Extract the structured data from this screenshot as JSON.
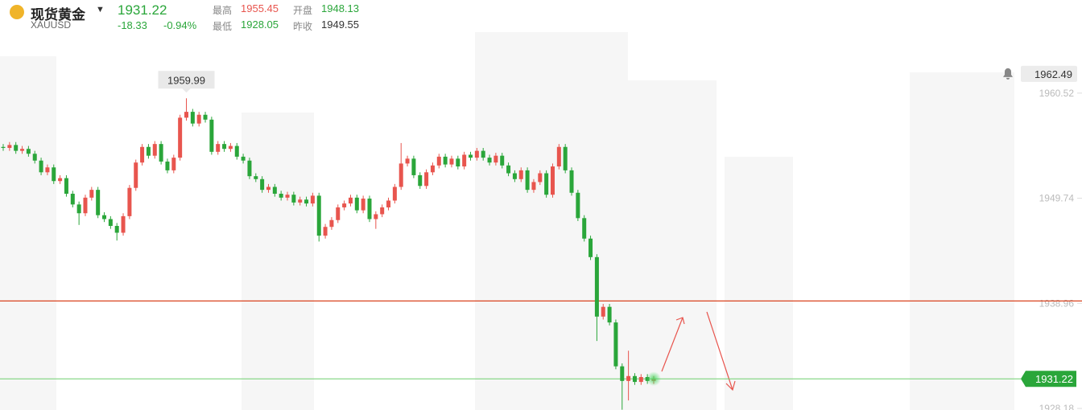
{
  "header": {
    "name": "现货黄金",
    "symbol": "XAUUSD",
    "price": "1931.22",
    "change": "-18.33",
    "change_pct": "-0.94%",
    "high_label": "最高",
    "high": "1955.45",
    "open_label": "开盘",
    "open": "1948.13",
    "low_label": "最低",
    "low": "1928.05",
    "prev_close_label": "昨收",
    "prev_close": "1949.55"
  },
  "chart_data": {
    "type": "candlestick",
    "up_color": "#e8554e",
    "down_color": "#2aa63a",
    "ylim": [
      1928.02,
      1970.07
    ],
    "yticks": [
      1960.52,
      1949.74,
      1938.96,
      1928.18
    ],
    "alert_price": 1962.49,
    "last_price": 1931.22,
    "hline": 1939.2,
    "hline_color": "#d9431f",
    "peak_label": 1959.99,
    "peak_index": 29,
    "open": [
      1955.0,
      1954.9,
      1955.2,
      1954.6,
      1954.8,
      1954.3,
      1953.6,
      1952.4,
      1952.9,
      1951.5,
      1951.8,
      1950.2,
      1949.1,
      1948.2,
      1949.8,
      1950.6,
      1948.0,
      1947.6,
      1946.9,
      1946.2,
      1947.9,
      1950.8,
      1953.4,
      1955.0,
      1954.1,
      1955.3,
      1953.5,
      1952.6,
      1953.9,
      1958.0,
      1958.6,
      1957.4,
      1958.3,
      1957.8,
      1954.5,
      1955.3,
      1954.8,
      1955.1,
      1954.0,
      1953.6,
      1952.0,
      1951.7,
      1950.6,
      1950.9,
      1950.2,
      1949.8,
      1950.1,
      1949.3,
      1949.6,
      1949.2,
      1950.0,
      1945.9,
      1946.8,
      1947.5,
      1948.8,
      1949.2,
      1949.8,
      1948.5,
      1949.7,
      1947.6,
      1948.1,
      1948.8,
      1949.5,
      1950.9,
      1953.3,
      1953.8,
      1952.1,
      1951.0,
      1952.4,
      1953.1,
      1954.0,
      1953.2,
      1953.8,
      1953.0,
      1954.2,
      1953.9,
      1954.6,
      1953.9,
      1953.4,
      1954.1,
      1953.1,
      1952.3,
      1951.7,
      1952.6,
      1950.6,
      1951.4,
      1952.3,
      1950.1,
      1953.0,
      1955.0,
      1952.6,
      1950.3,
      1947.7,
      1945.6,
      1943.7,
      1937.6,
      1938.6,
      1937.0,
      1932.5,
      1931.0,
      1931.5,
      1930.9,
      1931.4,
      1931.0
    ],
    "high": [
      1955.3,
      1955.5,
      1955.5,
      1955.1,
      1955.1,
      1954.6,
      1953.9,
      1953.2,
      1953.2,
      1952.1,
      1952.1,
      1950.5,
      1949.4,
      1950.1,
      1950.9,
      1950.9,
      1948.3,
      1947.9,
      1947.2,
      1948.2,
      1951.1,
      1953.7,
      1955.3,
      1955.3,
      1955.6,
      1955.6,
      1953.8,
      1954.2,
      1958.3,
      1959.99,
      1958.9,
      1958.6,
      1958.6,
      1958.1,
      1955.6,
      1955.6,
      1955.4,
      1955.4,
      1954.3,
      1953.9,
      1952.3,
      1952.0,
      1951.2,
      1951.2,
      1950.5,
      1950.4,
      1950.4,
      1949.9,
      1949.9,
      1950.3,
      1950.3,
      1947.1,
      1947.8,
      1949.1,
      1949.5,
      1950.1,
      1950.1,
      1950.0,
      1950.0,
      1948.4,
      1949.1,
      1949.8,
      1951.2,
      1955.4,
      1954.1,
      1954.1,
      1952.4,
      1952.7,
      1953.4,
      1954.3,
      1954.3,
      1954.1,
      1954.1,
      1954.5,
      1954.5,
      1954.9,
      1954.9,
      1954.2,
      1954.4,
      1954.4,
      1953.4,
      1952.6,
      1952.9,
      1952.9,
      1951.7,
      1952.6,
      1952.6,
      1953.3,
      1955.3,
      1955.3,
      1952.9,
      1950.6,
      1948.0,
      1945.9,
      1944.0,
      1938.9,
      1938.9,
      1937.3,
      1932.8,
      1934.1,
      1931.8,
      1931.7,
      1931.7,
      1931.5
    ],
    "low": [
      1954.6,
      1954.6,
      1954.3,
      1954.3,
      1954.0,
      1953.3,
      1952.1,
      1952.1,
      1951.2,
      1951.2,
      1949.9,
      1948.8,
      1947.0,
      1947.9,
      1949.5,
      1947.7,
      1947.3,
      1946.6,
      1945.4,
      1945.9,
      1947.6,
      1950.5,
      1953.1,
      1953.8,
      1953.8,
      1953.2,
      1952.3,
      1952.3,
      1953.6,
      1957.7,
      1957.1,
      1957.1,
      1957.5,
      1954.2,
      1954.2,
      1954.5,
      1954.5,
      1953.7,
      1953.3,
      1951.7,
      1951.4,
      1950.3,
      1950.3,
      1949.9,
      1949.5,
      1949.5,
      1949.0,
      1949.0,
      1948.9,
      1948.9,
      1945.3,
      1945.6,
      1946.5,
      1947.2,
      1948.5,
      1948.9,
      1948.2,
      1948.2,
      1947.3,
      1946.6,
      1947.8,
      1948.5,
      1949.2,
      1950.6,
      1953.0,
      1951.8,
      1950.7,
      1950.7,
      1952.1,
      1952.8,
      1952.9,
      1952.9,
      1952.7,
      1952.7,
      1953.6,
      1953.6,
      1953.6,
      1953.1,
      1953.1,
      1952.8,
      1952.0,
      1951.4,
      1951.4,
      1950.3,
      1950.3,
      1951.1,
      1949.8,
      1949.8,
      1952.7,
      1952.3,
      1950.0,
      1947.4,
      1945.3,
      1943.4,
      1935.1,
      1937.3,
      1936.7,
      1932.2,
      1928.05,
      1929.0,
      1930.6,
      1930.6,
      1930.7,
      1930.7
    ],
    "close": [
      1954.9,
      1955.2,
      1954.6,
      1954.8,
      1954.3,
      1953.6,
      1952.4,
      1952.9,
      1951.5,
      1951.8,
      1950.2,
      1949.1,
      1948.2,
      1949.8,
      1950.6,
      1948.0,
      1947.6,
      1946.9,
      1946.2,
      1947.9,
      1950.8,
      1953.4,
      1955.0,
      1954.1,
      1955.3,
      1953.5,
      1952.6,
      1953.9,
      1958.0,
      1958.6,
      1957.4,
      1958.3,
      1957.8,
      1954.5,
      1955.3,
      1954.8,
      1955.1,
      1954.0,
      1953.6,
      1952.0,
      1951.7,
      1950.6,
      1950.9,
      1950.2,
      1949.8,
      1950.1,
      1949.3,
      1949.6,
      1949.2,
      1950.0,
      1945.9,
      1946.8,
      1947.5,
      1948.8,
      1949.2,
      1949.8,
      1948.5,
      1949.7,
      1947.6,
      1948.1,
      1948.8,
      1949.5,
      1950.9,
      1953.3,
      1953.8,
      1952.1,
      1951.0,
      1952.4,
      1953.1,
      1954.0,
      1953.2,
      1953.8,
      1953.0,
      1954.2,
      1953.9,
      1954.6,
      1953.9,
      1953.4,
      1954.1,
      1953.1,
      1952.3,
      1951.7,
      1952.6,
      1950.6,
      1951.4,
      1952.3,
      1950.1,
      1953.0,
      1955.0,
      1952.6,
      1950.3,
      1947.7,
      1945.6,
      1943.7,
      1937.6,
      1938.6,
      1937.0,
      1932.5,
      1931.0,
      1931.5,
      1930.9,
      1931.4,
      1931.0,
      1931.22
    ]
  }
}
